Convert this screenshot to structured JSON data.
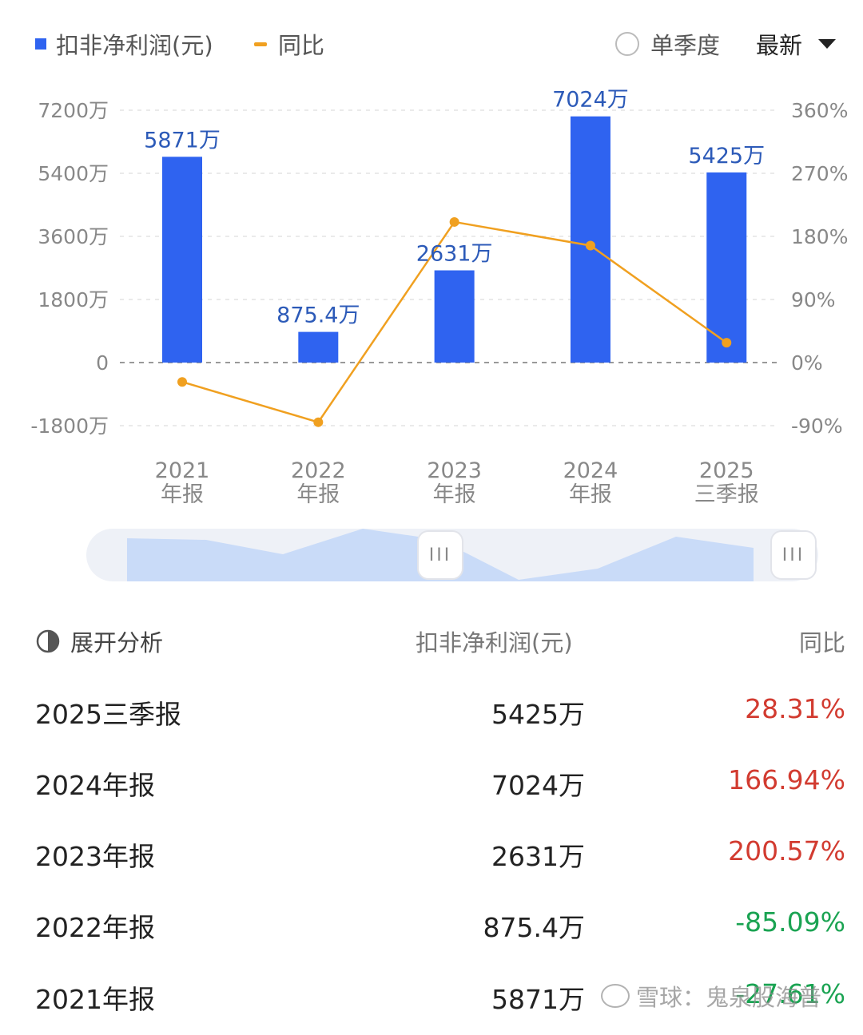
{
  "legend": {
    "series_profit": "扣非净利润(元)",
    "series_yoy": "同比",
    "single_quarter": "单季度",
    "latest": "最新"
  },
  "colors": {
    "bar": "#2f63f0",
    "line": "#f0a020",
    "positive": "#d23b30",
    "negative": "#1aa352"
  },
  "chart_data": {
    "type": "bar",
    "categories": [
      [
        "2021",
        "年报"
      ],
      [
        "2022",
        "年报"
      ],
      [
        "2023",
        "年报"
      ],
      [
        "2024",
        "年报"
      ],
      [
        "2025",
        "三季报"
      ]
    ],
    "series": [
      {
        "name": "扣非净利润(元)",
        "type": "bar",
        "axis": "left",
        "values": [
          5871,
          875.4,
          2631,
          7024,
          5425
        ],
        "labels": [
          "5871万",
          "875.4万",
          "2631万",
          "7024万",
          "5425万"
        ]
      },
      {
        "name": "同比",
        "type": "line",
        "axis": "right",
        "values": [
          -27.61,
          -85.09,
          200.57,
          166.94,
          28.31
        ]
      }
    ],
    "y_left": {
      "ticks": [
        -1800,
        0,
        1800,
        3600,
        5400,
        7200
      ],
      "tick_labels": [
        "-1800万",
        "0",
        "1800万",
        "3600万",
        "5400万",
        "7200万"
      ],
      "range": [
        -1800,
        7200
      ]
    },
    "y_right": {
      "ticks": [
        -90,
        0,
        90,
        180,
        270,
        360
      ],
      "tick_labels": [
        "-90%",
        "0%",
        "90%",
        "180%",
        "270%",
        "360%"
      ],
      "range": [
        -90,
        360
      ]
    },
    "grid": true
  },
  "table": {
    "headers": {
      "expand": "展开分析",
      "profit": "扣非净利润(元)",
      "yoy": "同比"
    },
    "rows": [
      {
        "period": "2025三季报",
        "value": "5425万",
        "yoy": "28.31%",
        "sign": "pos"
      },
      {
        "period": "2024年报",
        "value": "7024万",
        "yoy": "166.94%",
        "sign": "pos"
      },
      {
        "period": "2023年报",
        "value": "2631万",
        "yoy": "200.57%",
        "sign": "pos"
      },
      {
        "period": "2022年报",
        "value": "875.4万",
        "yoy": "-85.09%",
        "sign": "neg"
      },
      {
        "period": "2021年报",
        "value": "5871万",
        "yoy": "-27.61%",
        "sign": "neg"
      }
    ]
  },
  "watermark": "雪球：鬼泉股海普"
}
